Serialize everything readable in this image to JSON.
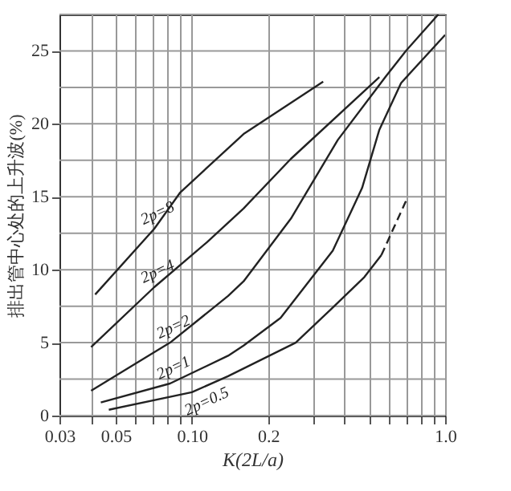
{
  "chart_data": {
    "type": "line",
    "xlabel": "K(2L/a)",
    "ylabel": "排出管中心处的上升波(%)",
    "log": "x",
    "grid": true,
    "line_style": "solid",
    "xlim": [
      0.03,
      1.0
    ],
    "ylim": [
      0,
      27.5
    ],
    "xticks": [
      0.03,
      {
        "value": 0.04,
        "label": null
      },
      0.05,
      {
        "value": 0.06,
        "label": null
      },
      {
        "value": 0.07,
        "label": null
      },
      {
        "value": 0.08,
        "label": null
      },
      {
        "value": 0.09,
        "label": null
      },
      {
        "value": 0.1,
        "label": "0.10"
      },
      0.2,
      {
        "value": 0.3,
        "label": null
      },
      {
        "value": 0.4,
        "label": null
      },
      {
        "value": 0.5,
        "label": null
      },
      {
        "value": 0.6,
        "label": null
      },
      {
        "value": 0.7,
        "label": null
      },
      {
        "value": 0.8,
        "label": null
      },
      {
        "value": 0.9,
        "label": null
      },
      {
        "value": 1,
        "label": "1.0"
      }
    ],
    "yticks": [
      0,
      {
        "value": 2.5,
        "label": null
      },
      5,
      {
        "value": 7.5,
        "label": null
      },
      10,
      {
        "value": 12.5,
        "label": null
      },
      15,
      {
        "value": 17.5,
        "label": null
      },
      20,
      {
        "value": 22.5,
        "label": null
      },
      25,
      {
        "value": 27.5,
        "label": null
      }
    ],
    "series": [
      {
        "name": "2p=8",
        "color": "#222222",
        "x": [
          0.0415,
          0.071,
          0.09,
          0.16,
          0.33
        ],
        "values": [
          8.3,
          12.8,
          15.3,
          19.3,
          22.9
        ]
      },
      {
        "name": "2p=4",
        "color": "#222222",
        "x": [
          0.04,
          0.071,
          0.115,
          0.16,
          0.246,
          0.55
        ],
        "values": [
          4.7,
          8.8,
          11.9,
          14.2,
          17.6,
          23.2
        ]
      },
      {
        "name": "2p=2",
        "color": "#222222",
        "x": [
          0.04,
          0.082,
          0.139,
          0.16,
          0.246,
          0.377,
          0.58,
          0.7,
          0.94
        ],
        "values": [
          1.7,
          5.0,
          8.2,
          9.2,
          13.5,
          18.9,
          23.2,
          25.0,
          27.5
        ]
      },
      {
        "name": "2p=1",
        "color": "#222222",
        "x": [
          0.0437,
          0.082,
          0.139,
          0.16,
          0.224,
          0.36,
          0.47,
          0.55,
          0.67,
          1.0
        ],
        "values": [
          0.9,
          2.2,
          4.1,
          4.8,
          6.7,
          11.3,
          15.6,
          19.6,
          22.8,
          26.1
        ]
      },
      {
        "name": "2p=0.5",
        "color": "#222222",
        "x": [
          0.047,
          0.1,
          0.139,
          0.257,
          0.36,
          0.48,
          0.56
        ],
        "values": [
          0.4,
          1.6,
          2.7,
          5.0,
          7.4,
          9.5,
          11.0
        ]
      },
      {
        "color": "#222222",
        "line_style": "dashed",
        "x": [
          0.56,
          0.7
        ],
        "values": [
          11.0,
          14.7
        ]
      }
    ]
  }
}
